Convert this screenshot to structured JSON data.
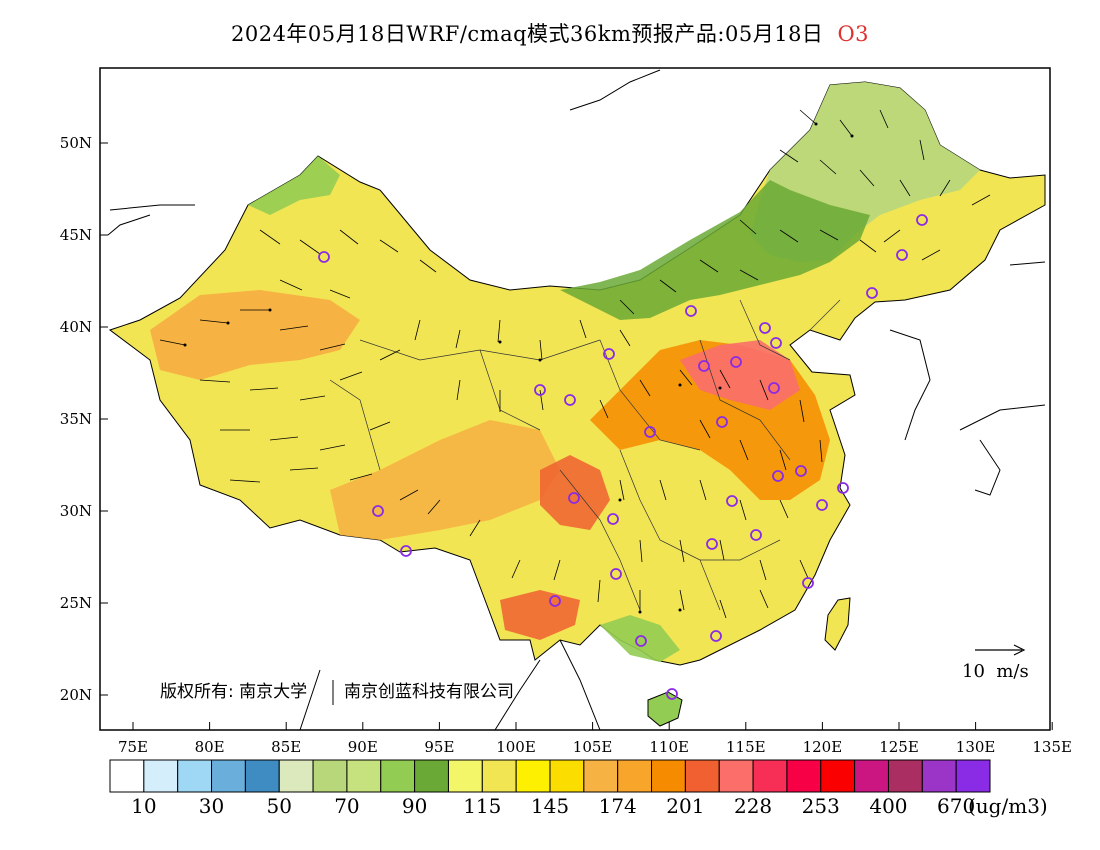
{
  "title": {
    "text": "2024年05月18日WRF/cmaq模式36km预报产品:05月18日",
    "pollutant": "O3",
    "pollutant_color": "#e03030"
  },
  "map": {
    "region": "China",
    "lon_ticks": [
      "75E",
      "80E",
      "85E",
      "90E",
      "95E",
      "100E",
      "105E",
      "110E",
      "115E",
      "120E",
      "125E",
      "130E",
      "135E"
    ],
    "lat_ticks": [
      "50N",
      "45N",
      "40N",
      "35N",
      "30N",
      "25N",
      "20N"
    ],
    "copyright": "版权所有: 南京大学",
    "copyright_company": "南京创蓝科技有限公司",
    "wind_ref_label": "10  m/s"
  },
  "colorbar": {
    "colors": [
      "#ffffff",
      "#d4eefb",
      "#9fd8f5",
      "#6aaedc",
      "#3f8cc3",
      "#dce9bd",
      "#b8d77b",
      "#c6e27f",
      "#93cc52",
      "#6aa935",
      "#f4f66a",
      "#f2e554",
      "#fdf000",
      "#fbdd00",
      "#f6b243",
      "#f7a52b",
      "#f68b00",
      "#f06030",
      "#fb6e6a",
      "#f72f57",
      "#f80045",
      "#fa0000",
      "#cb1682",
      "#aa2e61",
      "#9a35c8",
      "#8a2be6"
    ],
    "labels": [
      "10",
      "30",
      "50",
      "70",
      "90",
      "115",
      "145",
      "174",
      "201",
      "228",
      "253",
      "400",
      "670"
    ],
    "unit": "(ug/m3)"
  }
}
